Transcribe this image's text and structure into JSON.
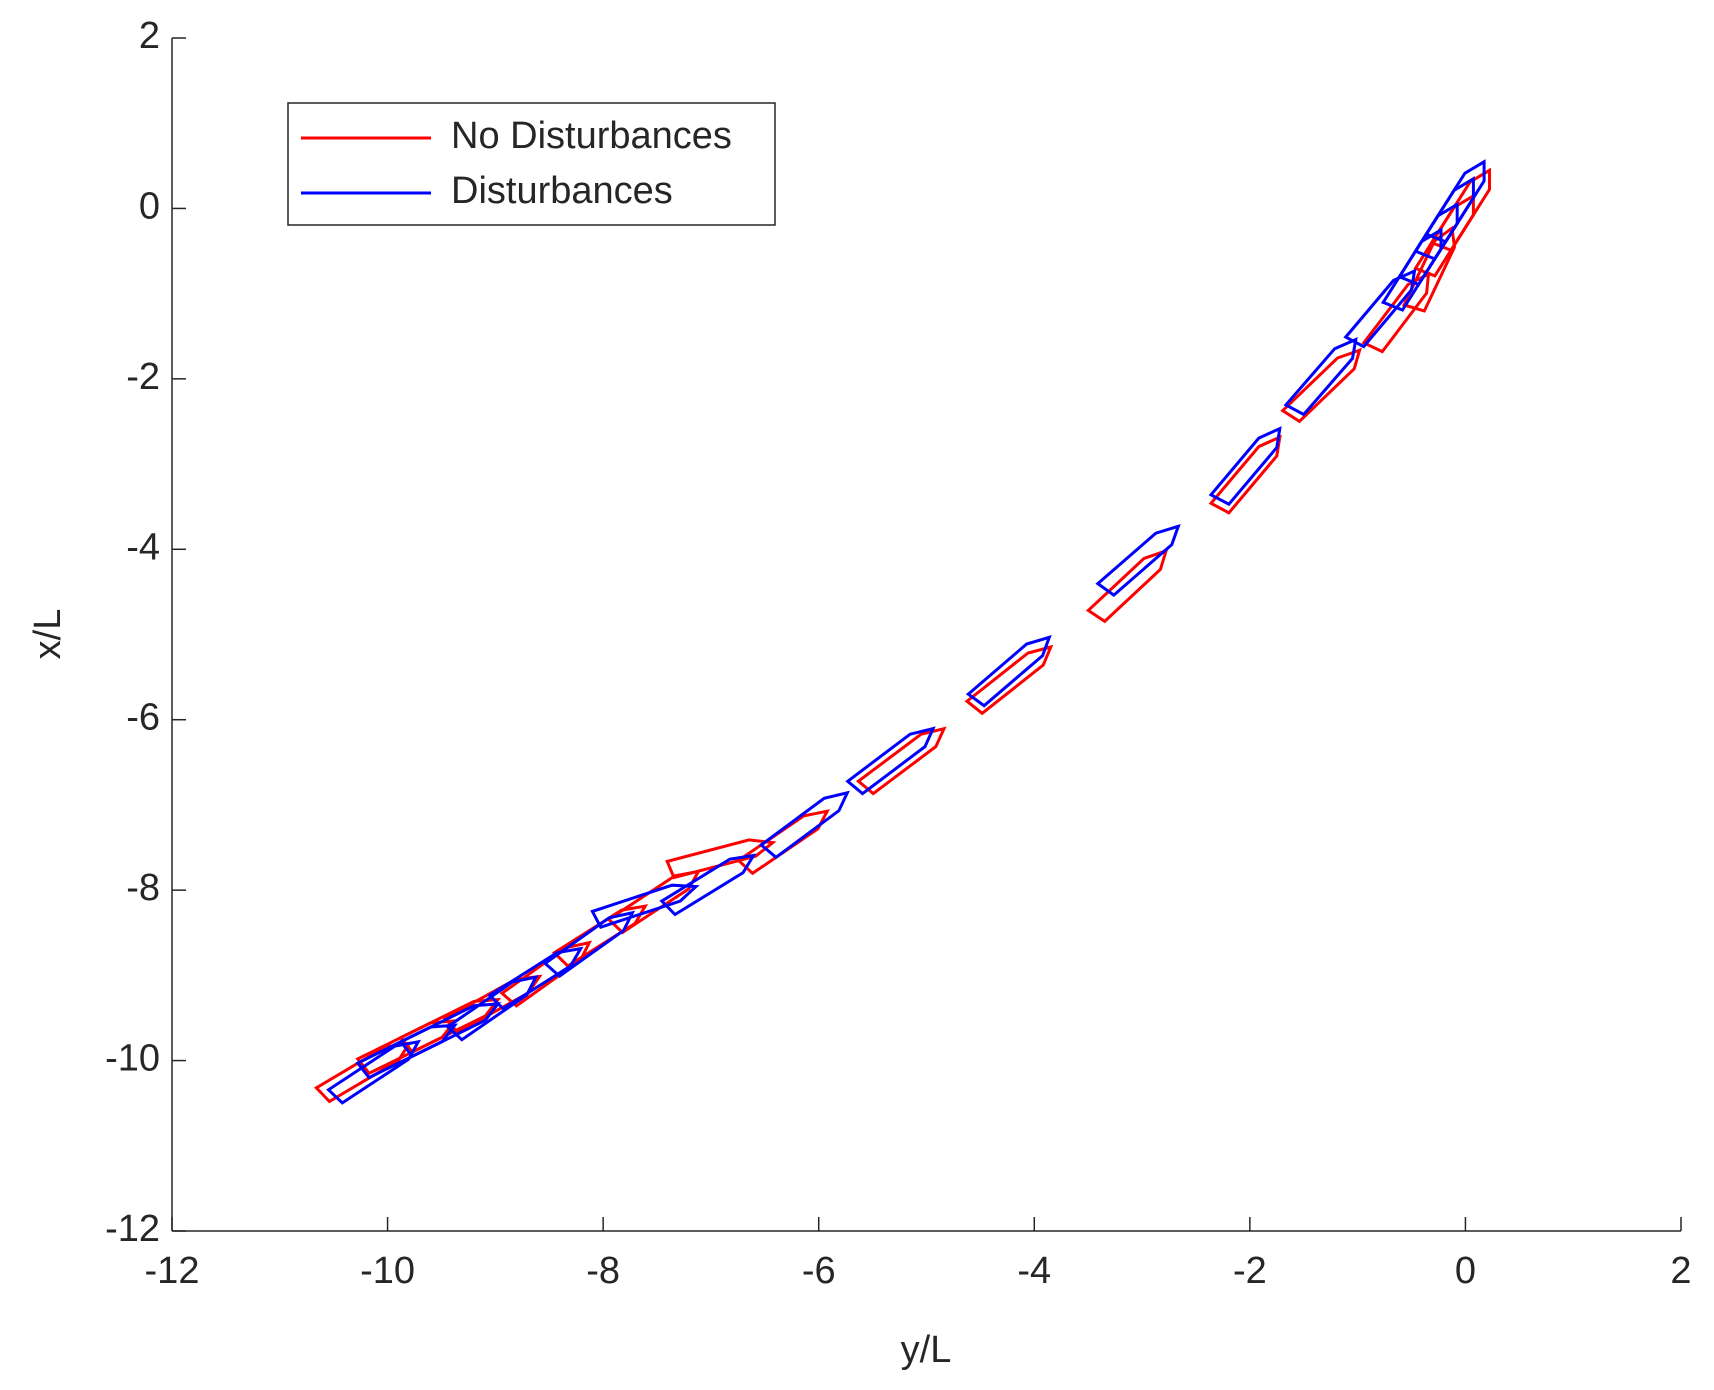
{
  "chart_data": {
    "type": "trajectory",
    "xlabel": "y/L",
    "ylabel": "x/L",
    "xlim": [
      -12,
      2
    ],
    "ylim": [
      -12,
      2
    ],
    "xticks": [
      -12,
      -10,
      -8,
      -6,
      -4,
      -2,
      0,
      2
    ],
    "yticks": [
      -12,
      -10,
      -8,
      -6,
      -4,
      -2,
      0,
      2
    ],
    "legend": "upper left",
    "series": [
      {
        "name": "No Disturbances",
        "color": "#ff0000",
        "x": [
          -10.2,
          -9.8,
          -9.4,
          -9.0,
          -8.5,
          -8.0,
          -7.5,
          -6.9,
          -6.3,
          -5.2,
          -4.2,
          -3.1,
          -2.0,
          -1.3,
          -0.6,
          -0.3,
          -0.15,
          0.0
        ],
        "values": [
          -10.1,
          -9.8,
          -9.55,
          -9.3,
          -8.95,
          -8.5,
          -8.1,
          -7.6,
          -7.4,
          -6.45,
          -5.5,
          -4.4,
          -3.1,
          -2.05,
          -1.2,
          -0.7,
          -0.3,
          0.0
        ]
      },
      {
        "name": "Disturbances",
        "color": "#0000ff",
        "x": [
          -10.1,
          -9.8,
          -9.4,
          -9.0,
          -8.6,
          -8.1,
          -7.6,
          -7.0,
          -6.1,
          -5.3,
          -4.2,
          -3.0,
          -2.0,
          -1.3,
          -0.75,
          -0.45,
          -0.3,
          -0.15,
          -0.05
        ],
        "values": [
          -10.1,
          -9.85,
          -9.6,
          -9.35,
          -9.0,
          -8.6,
          -8.15,
          -7.9,
          -7.2,
          -6.45,
          -5.4,
          -4.1,
          -3.0,
          -1.95,
          -1.15,
          -0.7,
          -0.4,
          -0.1,
          0.1
        ]
      }
    ]
  }
}
